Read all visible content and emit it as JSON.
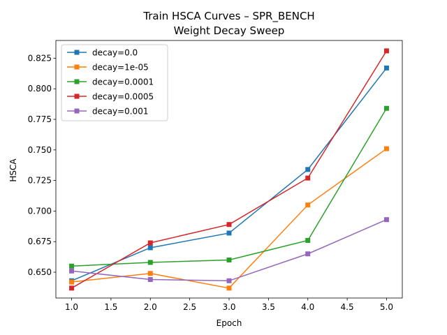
{
  "chart_data": {
    "type": "line",
    "title": "Train HSCA Curves – SPR_BENCH",
    "subtitle": "Weight Decay Sweep",
    "xlabel": "Epoch",
    "ylabel": "HSCA",
    "xlim": [
      0.8,
      5.2
    ],
    "ylim": [
      0.6289,
      0.8395
    ],
    "x_ticks": [
      1.0,
      1.5,
      2.0,
      2.5,
      3.0,
      3.5,
      4.0,
      4.5,
      5.0
    ],
    "x_tick_labels": [
      "1.0",
      "1.5",
      "2.0",
      "2.5",
      "3.0",
      "3.5",
      "4.0",
      "4.5",
      "5.0"
    ],
    "y_ticks": [
      0.65,
      0.675,
      0.7,
      0.725,
      0.75,
      0.775,
      0.8,
      0.825
    ],
    "y_tick_labels": [
      "0.650",
      "0.675",
      "0.700",
      "0.725",
      "0.750",
      "0.775",
      "0.800",
      "0.825"
    ],
    "grid": false,
    "legend_position": "top-left",
    "marker": "square",
    "x": [
      1,
      2,
      3,
      4,
      5
    ],
    "series": [
      {
        "name": "decay=0.0",
        "color": "#1f77b4",
        "values": [
          0.643,
          0.67,
          0.682,
          0.734,
          0.817
        ]
      },
      {
        "name": "decay=1e-05",
        "color": "#ff7f0e",
        "values": [
          0.642,
          0.649,
          0.637,
          0.705,
          0.751
        ]
      },
      {
        "name": "decay=0.0001",
        "color": "#2ca02c",
        "values": [
          0.655,
          0.658,
          0.66,
          0.676,
          0.784
        ]
      },
      {
        "name": "decay=0.0005",
        "color": "#d62728",
        "values": [
          0.637,
          0.674,
          0.689,
          0.727,
          0.831
        ]
      },
      {
        "name": "decay=0.001",
        "color": "#9467bd",
        "values": [
          0.651,
          0.644,
          0.643,
          0.665,
          0.693
        ]
      }
    ]
  }
}
